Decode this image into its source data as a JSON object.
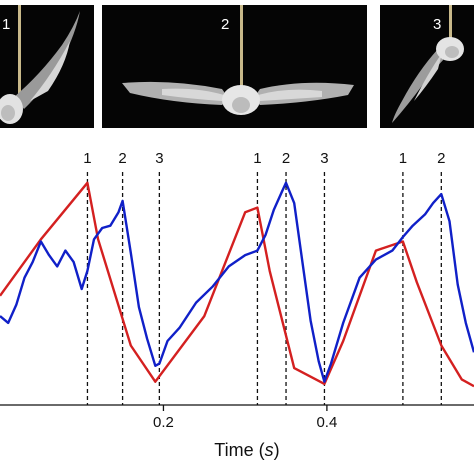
{
  "frames": [
    {
      "label": "1",
      "pose": "wings-up"
    },
    {
      "label": "2",
      "pose": "wings-spread"
    },
    {
      "label": "3",
      "pose": "wings-down"
    }
  ],
  "chart_data": {
    "type": "line",
    "xlabel_prefix": "Time (",
    "xlabel_unit": "s",
    "xlabel_suffix": ")",
    "ylabel": "",
    "xlim": [
      0.0,
      0.58
    ],
    "ylim": [
      0.0,
      1.0
    ],
    "x_ticks": [
      0.2,
      0.4
    ],
    "x_tick_labels": [
      "0.2",
      "0.4"
    ],
    "grid": false,
    "markers": [
      {
        "label": "1",
        "x": 0.107
      },
      {
        "label": "2",
        "x": 0.15
      },
      {
        "label": "3",
        "x": 0.195
      },
      {
        "label": "1",
        "x": 0.315
      },
      {
        "label": "2",
        "x": 0.35
      },
      {
        "label": "3",
        "x": 0.397
      },
      {
        "label": "1",
        "x": 0.493
      },
      {
        "label": "2",
        "x": 0.54
      }
    ],
    "series": [
      {
        "color": "#d42020",
        "x": [
          0.0,
          0.05,
          0.107,
          0.12,
          0.16,
          0.19,
          0.25,
          0.3,
          0.315,
          0.33,
          0.36,
          0.397,
          0.42,
          0.46,
          0.493,
          0.51,
          0.54,
          0.565,
          0.58
        ],
        "y": [
          0.47,
          0.72,
          0.97,
          0.72,
          0.25,
          0.09,
          0.38,
          0.84,
          0.86,
          0.58,
          0.15,
          0.08,
          0.27,
          0.67,
          0.71,
          0.53,
          0.25,
          0.1,
          0.07
        ]
      },
      {
        "color": "#1020c8",
        "x": [
          0.0,
          0.01,
          0.02,
          0.03,
          0.04,
          0.05,
          0.06,
          0.07,
          0.08,
          0.09,
          0.1,
          0.107,
          0.115,
          0.125,
          0.135,
          0.145,
          0.15,
          0.16,
          0.17,
          0.18,
          0.19,
          0.195,
          0.205,
          0.22,
          0.24,
          0.26,
          0.28,
          0.3,
          0.315,
          0.325,
          0.335,
          0.345,
          0.35,
          0.36,
          0.37,
          0.38,
          0.39,
          0.397,
          0.405,
          0.42,
          0.44,
          0.46,
          0.48,
          0.493,
          0.505,
          0.52,
          0.53,
          0.54,
          0.55,
          0.56,
          0.57,
          0.58
        ],
        "y": [
          0.38,
          0.35,
          0.43,
          0.55,
          0.62,
          0.71,
          0.65,
          0.6,
          0.67,
          0.62,
          0.5,
          0.58,
          0.72,
          0.77,
          0.78,
          0.84,
          0.89,
          0.66,
          0.42,
          0.28,
          0.16,
          0.17,
          0.27,
          0.33,
          0.44,
          0.51,
          0.6,
          0.65,
          0.67,
          0.74,
          0.85,
          0.93,
          0.97,
          0.88,
          0.62,
          0.36,
          0.18,
          0.09,
          0.17,
          0.35,
          0.55,
          0.63,
          0.67,
          0.73,
          0.78,
          0.83,
          0.88,
          0.92,
          0.8,
          0.52,
          0.35,
          0.22
        ]
      }
    ]
  }
}
